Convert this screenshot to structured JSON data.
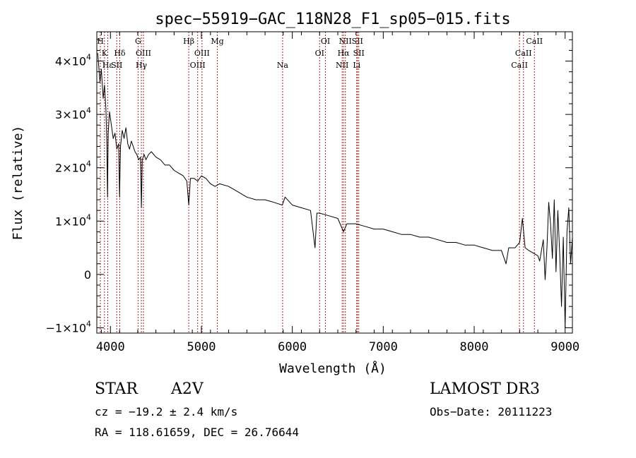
{
  "chart_data": {
    "type": "line",
    "title": "spec−55919−GAC_118N28_F1_sp05−015.fits",
    "xlabel": "Wavelength (Å)",
    "ylabel": "Flux (relative)",
    "xlim": [
      3850,
      9080
    ],
    "ylim": [
      -11000,
      45500
    ],
    "xticks": [
      4000,
      5000,
      6000,
      7000,
      8000,
      9000
    ],
    "xtick_labels": [
      "4000",
      "5000",
      "6000",
      "7000",
      "8000",
      "9000"
    ],
    "yticks": [
      {
        "value": -10000,
        "mant": "−1×10",
        "exp": "4"
      },
      {
        "value": 0,
        "mant": "0",
        "exp": ""
      },
      {
        "value": 10000,
        "mant": "1×10",
        "exp": "4"
      },
      {
        "value": 20000,
        "mant": "2×10",
        "exp": "4"
      },
      {
        "value": 30000,
        "mant": "3×10",
        "exp": "4"
      },
      {
        "value": 40000,
        "mant": "4×10",
        "exp": "4"
      }
    ],
    "series": [
      {
        "name": "spectrum",
        "x": [
          3860,
          3885,
          3900,
          3920,
          3935,
          3950,
          3960,
          3968,
          3975,
          3990,
          4010,
          4030,
          4050,
          4070,
          4090,
          4100,
          4110,
          4130,
          4150,
          4170,
          4190,
          4210,
          4230,
          4250,
          4270,
          4290,
          4310,
          4330,
          4340,
          4350,
          4370,
          4390,
          4420,
          4450,
          4500,
          4550,
          4600,
          4650,
          4700,
          4750,
          4800,
          4840,
          4861,
          4880,
          4920,
          4960,
          5000,
          5050,
          5100,
          5150,
          5200,
          5300,
          5400,
          5500,
          5600,
          5700,
          5800,
          5890,
          5920,
          6000,
          6100,
          6200,
          6250,
          6270,
          6300,
          6400,
          6500,
          6563,
          6600,
          6700,
          6800,
          6900,
          7000,
          7100,
          7200,
          7300,
          7400,
          7500,
          7600,
          7700,
          7800,
          7900,
          8000,
          8100,
          8200,
          8300,
          8350,
          8380,
          8450,
          8500,
          8530,
          8560,
          8600,
          8650,
          8700,
          8720,
          8760,
          8780,
          8800,
          8820,
          8840,
          8860,
          8880,
          8900,
          8920,
          8940,
          8960,
          8980,
          9000,
          9020,
          9040,
          9060,
          9080
        ],
        "y": [
          41500,
          36000,
          38500,
          33000,
          35500,
          31000,
          24500,
          14500,
          26500,
          30500,
          28000,
          25500,
          26500,
          23500,
          24500,
          14500,
          24000,
          27000,
          25500,
          27500,
          24500,
          23500,
          25000,
          24000,
          23000,
          22500,
          21500,
          22000,
          12500,
          21500,
          22500,
          21500,
          22500,
          23000,
          22000,
          21500,
          20500,
          20500,
          19500,
          19000,
          18500,
          17500,
          13000,
          18000,
          18000,
          17500,
          18500,
          18000,
          17000,
          16500,
          17000,
          16500,
          15500,
          14500,
          14000,
          14000,
          13500,
          13000,
          14500,
          13000,
          12500,
          12000,
          5000,
          11500,
          11500,
          11000,
          10500,
          8000,
          9500,
          9500,
          9000,
          8500,
          8500,
          8000,
          7500,
          7500,
          7000,
          7000,
          6500,
          6000,
          6000,
          5500,
          5500,
          5000,
          4500,
          4500,
          2000,
          5000,
          5000,
          6000,
          10500,
          5000,
          4500,
          4000,
          3500,
          2500,
          6500,
          -1000,
          5000,
          13500,
          9500,
          3000,
          14000,
          500,
          12000,
          4000,
          -6000,
          7000,
          -10000,
          8000,
          12500,
          2000,
          7000
        ]
      }
    ],
    "lines": [
      {
        "label": "H",
        "x": 3889,
        "row": 0
      },
      {
        "label": "K",
        "x": 3934,
        "row": 1
      },
      {
        "label": "Hε",
        "x": 3970,
        "row": 2
      },
      {
        "label": "SII",
        "x": 4069,
        "row": 2
      },
      {
        "label": "Hδ",
        "x": 4102,
        "row": 1
      },
      {
        "label": "G",
        "x": 4304,
        "row": 0
      },
      {
        "label": "OIII",
        "x": 4363,
        "row": 1
      },
      {
        "label": "Hγ",
        "x": 4340,
        "row": 2
      },
      {
        "label": "Hβ",
        "x": 4861,
        "row": 0
      },
      {
        "label": "OIII",
        "x": 4959,
        "row": 2
      },
      {
        "label": "OIII",
        "x": 5007,
        "row": 1
      },
      {
        "label": "Mg",
        "x": 5175,
        "row": 0
      },
      {
        "label": "Na",
        "x": 5893,
        "row": 2
      },
      {
        "label": "OI",
        "x": 6300,
        "row": 1
      },
      {
        "label": "OI",
        "x": 6364,
        "row": 0
      },
      {
        "label": "NII",
        "x": 6548,
        "row": 2
      },
      {
        "label": "NII",
        "x": 6583,
        "row": 0
      },
      {
        "label": "Hα",
        "x": 6563,
        "row": 1
      },
      {
        "label": "SII",
        "x": 6716,
        "row": 0
      },
      {
        "label": "SII",
        "x": 6731,
        "row": 1
      },
      {
        "label": "Li",
        "x": 6708,
        "row": 2
      },
      {
        "label": "CaII",
        "x": 8498,
        "row": 2
      },
      {
        "label": "CaII",
        "x": 8542,
        "row": 1
      },
      {
        "label": "CaII",
        "x": 8662,
        "row": 0
      }
    ]
  },
  "info": {
    "class_label": "STAR",
    "subclass": "A2V",
    "survey": "LAMOST DR3",
    "cz": "cz = −19.2 ± 2.4 km/s",
    "obs_date": "Obs−Date: 20111223",
    "radec": "RA = 118.61659, DEC =  26.76644"
  }
}
